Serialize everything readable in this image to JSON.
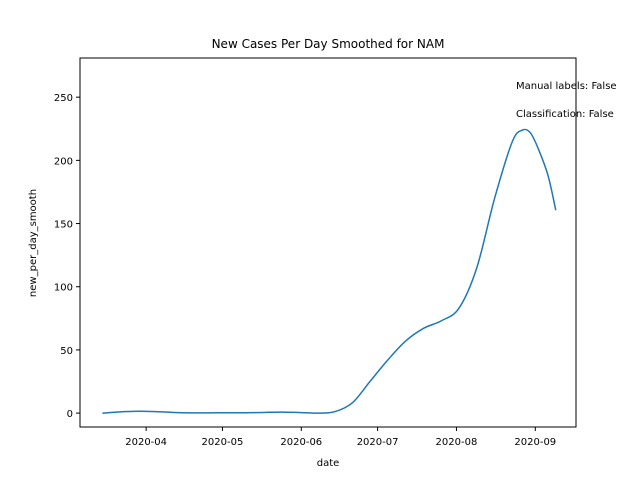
{
  "chart_data": {
    "type": "line",
    "title": "New Cases Per Day Smoothed for NAM",
    "xlabel": "date",
    "ylabel": "new_per_day_smooth",
    "x_ticks": [
      "2020-04",
      "2020-05",
      "2020-06",
      "2020-07",
      "2020-08",
      "2020-09"
    ],
    "y_ticks": [
      0,
      50,
      100,
      150,
      200,
      250
    ],
    "xlim": [
      "2020-03-06",
      "2020-09-17"
    ],
    "ylim": [
      -11,
      281
    ],
    "grid": false,
    "annotations": [
      "Manual labels: False",
      "Classification: False"
    ],
    "colors": {
      "line": "#1f77b4"
    },
    "series": [
      {
        "x": [
          "2020-03-15",
          "2020-03-22",
          "2020-03-29",
          "2020-04-05",
          "2020-04-12",
          "2020-04-19",
          "2020-04-26",
          "2020-05-03",
          "2020-05-10",
          "2020-05-17",
          "2020-05-24",
          "2020-05-31",
          "2020-06-07",
          "2020-06-14",
          "2020-06-21",
          "2020-06-28",
          "2020-07-05",
          "2020-07-12",
          "2020-07-19",
          "2020-07-26",
          "2020-08-02",
          "2020-08-09",
          "2020-08-16",
          "2020-08-23",
          "2020-08-27",
          "2020-08-30",
          "2020-09-02",
          "2020-09-06",
          "2020-09-09"
        ],
        "values": [
          0,
          1,
          1.5,
          1.2,
          0.5,
          0.2,
          0.2,
          0.3,
          0.3,
          0.5,
          0.8,
          0.5,
          0,
          1,
          8,
          25,
          42,
          57,
          67,
          73,
          83,
          115,
          170,
          215,
          224,
          222,
          210,
          188,
          161
        ]
      }
    ]
  }
}
